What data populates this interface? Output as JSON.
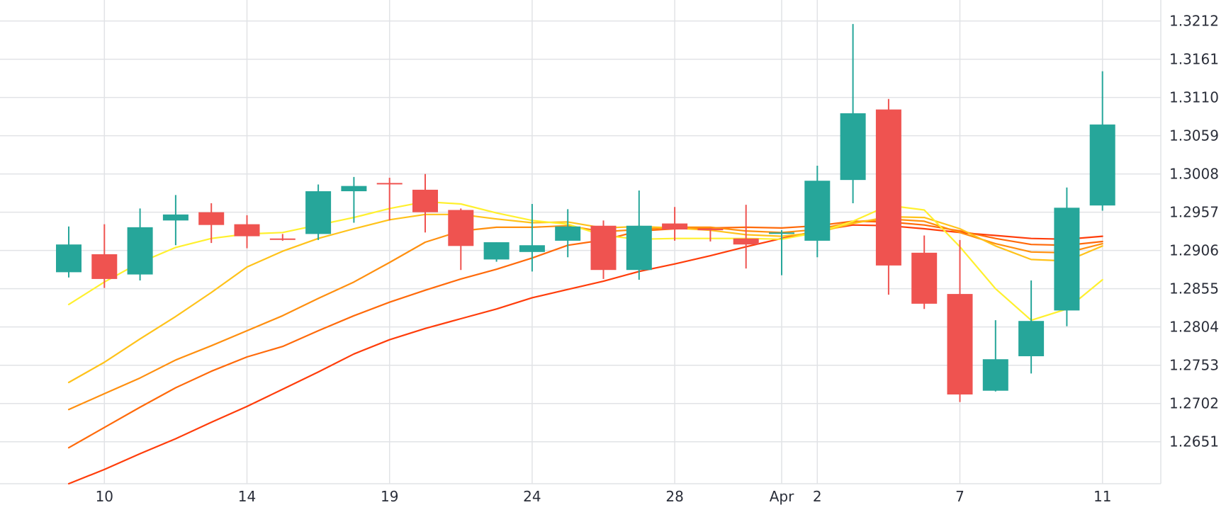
{
  "chart_data": {
    "type": "candlestick",
    "title": "",
    "xlabel": "",
    "ylabel": "",
    "y_axis_position": "right",
    "grid": true,
    "ylim": [
      1.2595,
      1.324
    ],
    "y_ticks": [
      "1.3212",
      "1.3161",
      "1.3110",
      "1.3059",
      "1.3008",
      "1.2957",
      "1.2906",
      "1.2855",
      "1.2804",
      "1.2753",
      "1.2702",
      "1.2651"
    ],
    "x_ticks": [
      {
        "label": "10",
        "index": 1
      },
      {
        "label": "14",
        "index": 5
      },
      {
        "label": "19",
        "index": 9
      },
      {
        "label": "24",
        "index": 13
      },
      {
        "label": "28",
        "index": 17
      },
      {
        "label": "Apr",
        "index": 20
      },
      {
        "label": "2",
        "index": 21
      },
      {
        "label": "7",
        "index": 25
      },
      {
        "label": "11",
        "index": 29
      }
    ],
    "colors": {
      "up": "#26a69a",
      "down": "#ef5350",
      "grid": "#e1e3e6",
      "text": "#2a2e39"
    },
    "candles": [
      {
        "open": 1.2877,
        "high": 1.2938,
        "low": 1.287,
        "close": 1.2914
      },
      {
        "open": 1.2901,
        "high": 1.2941,
        "low": 1.2856,
        "close": 1.2868
      },
      {
        "open": 1.2874,
        "high": 1.2962,
        "low": 1.2866,
        "close": 1.2937
      },
      {
        "open": 1.2946,
        "high": 1.298,
        "low": 1.2913,
        "close": 1.2954
      },
      {
        "open": 1.2957,
        "high": 1.2969,
        "low": 1.2916,
        "close": 1.294
      },
      {
        "open": 1.2941,
        "high": 1.2953,
        "low": 1.2909,
        "close": 1.2925
      },
      {
        "open": 1.2922,
        "high": 1.2928,
        "low": 1.2919,
        "close": 1.2921
      },
      {
        "open": 1.2928,
        "high": 1.2994,
        "low": 1.292,
        "close": 1.2985
      },
      {
        "open": 1.2985,
        "high": 1.3004,
        "low": 1.2943,
        "close": 1.2992
      },
      {
        "open": 1.2996,
        "high": 1.3003,
        "low": 1.2946,
        "close": 1.2995
      },
      {
        "open": 1.2987,
        "high": 1.3008,
        "low": 1.293,
        "close": 1.2957
      },
      {
        "open": 1.296,
        "high": 1.2962,
        "low": 1.288,
        "close": 1.2912
      },
      {
        "open": 1.2894,
        "high": 1.2917,
        "low": 1.2891,
        "close": 1.2917
      },
      {
        "open": 1.2904,
        "high": 1.2968,
        "low": 1.2878,
        "close": 1.2913
      },
      {
        "open": 1.2919,
        "high": 1.2961,
        "low": 1.2897,
        "close": 1.2938
      },
      {
        "open": 1.2939,
        "high": 1.2946,
        "low": 1.2868,
        "close": 1.288
      },
      {
        "open": 1.288,
        "high": 1.2986,
        "low": 1.2867,
        "close": 1.2939
      },
      {
        "open": 1.2942,
        "high": 1.2964,
        "low": 1.2919,
        "close": 1.2934
      },
      {
        "open": 1.2935,
        "high": 1.2936,
        "low": 1.2918,
        "close": 1.2933
      },
      {
        "open": 1.2922,
        "high": 1.2967,
        "low": 1.2882,
        "close": 1.2914
      },
      {
        "open": 1.2929,
        "high": 1.2933,
        "low": 1.2873,
        "close": 1.293
      },
      {
        "open": 1.2919,
        "high": 1.3019,
        "low": 1.2897,
        "close": 1.2999
      },
      {
        "open": 1.3,
        "high": 1.3208,
        "low": 1.2969,
        "close": 1.3089
      },
      {
        "open": 1.3094,
        "high": 1.3108,
        "low": 1.2847,
        "close": 1.2886
      },
      {
        "open": 1.2903,
        "high": 1.2926,
        "low": 1.2828,
        "close": 1.2835
      },
      {
        "open": 1.2848,
        "high": 1.292,
        "low": 1.2704,
        "close": 1.2714
      },
      {
        "open": 1.2719,
        "high": 1.2813,
        "low": 1.2718,
        "close": 1.2761
      },
      {
        "open": 1.2765,
        "high": 1.2866,
        "low": 1.2742,
        "close": 1.2812
      },
      {
        "open": 1.2826,
        "high": 1.299,
        "low": 1.2805,
        "close": 1.2963
      },
      {
        "open": 1.2966,
        "high": 1.3145,
        "low": 1.2959,
        "close": 1.3074
      }
    ],
    "series": [
      {
        "color": "#fff02e",
        "values": [
          1.2834,
          1.2864,
          1.289,
          1.291,
          1.2922,
          1.2928,
          1.293,
          1.294,
          1.295,
          1.2962,
          1.2971,
          1.2968,
          1.2956,
          1.2946,
          1.2941,
          1.2926,
          1.2921,
          1.2922,
          1.2922,
          1.2922,
          1.2921,
          1.293,
          1.2945,
          1.2966,
          1.296,
          1.2911,
          1.2855,
          1.2813,
          1.2828,
          1.2867
        ]
      },
      {
        "color": "#ffc21a",
        "values": [
          1.273,
          1.2757,
          1.2788,
          1.2818,
          1.285,
          1.2884,
          1.2905,
          1.2922,
          1.2935,
          1.2947,
          1.2954,
          1.2954,
          1.2948,
          1.2943,
          1.2944,
          1.2936,
          1.2938,
          1.2936,
          1.2933,
          1.2927,
          1.2925,
          1.293,
          1.2942,
          1.2951,
          1.295,
          1.2935,
          1.2912,
          1.2894,
          1.2892,
          1.2912
        ]
      },
      {
        "color": "#ff8f0f",
        "values": [
          1.2694,
          1.2715,
          1.2736,
          1.276,
          1.2779,
          1.2799,
          1.2819,
          1.2842,
          1.2864,
          1.289,
          1.2917,
          1.2932,
          1.2937,
          1.2937,
          1.2939,
          1.2931,
          1.2934,
          1.2937,
          1.2937,
          1.2932,
          1.293,
          1.2934,
          1.2944,
          1.2948,
          1.2945,
          1.293,
          1.2915,
          1.2904,
          1.2903,
          1.2915
        ]
      },
      {
        "color": "#ff6a0a",
        "values": [
          1.2643,
          1.267,
          1.2697,
          1.2723,
          1.2745,
          1.2764,
          1.2778,
          1.2799,
          1.2819,
          1.2837,
          1.2853,
          1.2868,
          1.2881,
          1.2896,
          1.2913,
          1.292,
          1.2932,
          1.2935,
          1.2936,
          1.2937,
          1.2936,
          1.2939,
          1.2945,
          1.2944,
          1.294,
          1.2932,
          1.2922,
          1.2914,
          1.2913,
          1.2918
        ]
      },
      {
        "color": "#ff3d0a",
        "values": [
          1.2595,
          1.2614,
          1.2635,
          1.2655,
          1.2677,
          1.2698,
          1.2721,
          1.2744,
          1.2768,
          1.2787,
          1.2802,
          1.2815,
          1.2828,
          1.2843,
          1.2854,
          1.2865,
          1.2878,
          1.2888,
          1.2899,
          1.2911,
          1.2922,
          1.2932,
          1.294,
          1.2939,
          1.2935,
          1.293,
          1.2926,
          1.2922,
          1.2921,
          1.2925
        ]
      }
    ]
  }
}
